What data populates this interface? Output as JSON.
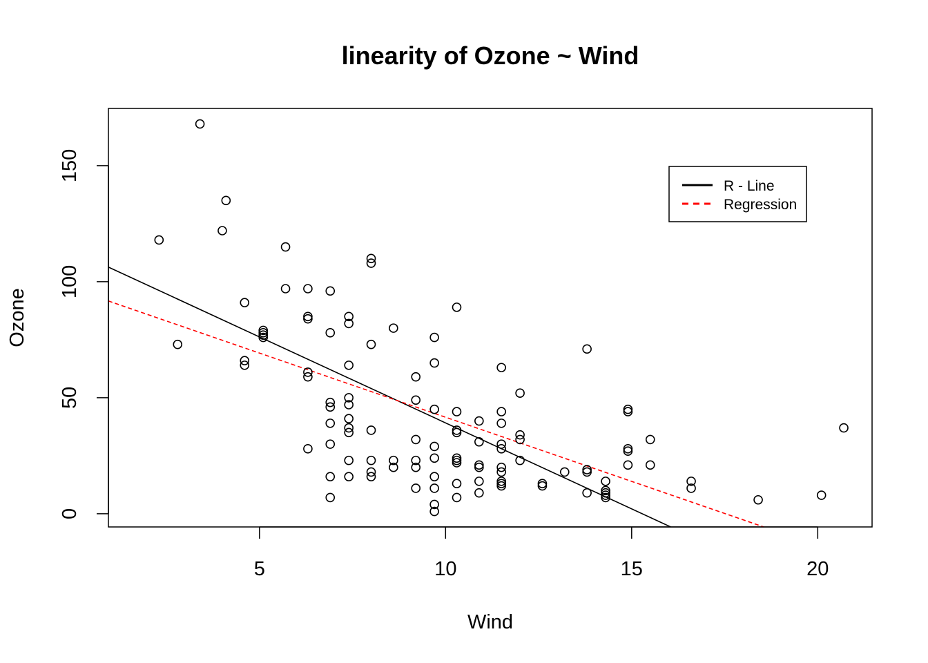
{
  "chart_data": {
    "type": "scatter",
    "title": "linearity of Ozone ~ Wind",
    "xlabel": "Wind",
    "ylabel": "Ozone",
    "xlim": [
      0.94,
      21.46
    ],
    "ylim": [
      -5.68,
      174.68
    ],
    "xticks": [
      5,
      10,
      15,
      20
    ],
    "yticks": [
      0,
      50,
      100,
      150
    ],
    "grid": false,
    "legend_position": "top-right",
    "legend": [
      {
        "label": "R - Line",
        "color": "#000000",
        "style": "solid"
      },
      {
        "label": "Regression",
        "color": "#ff0000",
        "style": "dashed"
      }
    ],
    "lines": [
      {
        "name": "R - Line",
        "color": "#000000",
        "style": "solid",
        "x": [
          0.94,
          16.05
        ],
        "y": [
          106.3,
          -5.68
        ]
      },
      {
        "name": "Regression",
        "color": "#ff0000",
        "style": "dashed",
        "x": [
          0.94,
          18.55
        ],
        "y": [
          91.7,
          -5.68
        ]
      }
    ],
    "points": [
      [
        3.4,
        168
      ],
      [
        2.3,
        118
      ],
      [
        2.8,
        73
      ],
      [
        4.1,
        135
      ],
      [
        4.0,
        122
      ],
      [
        4.6,
        91
      ],
      [
        4.6,
        66
      ],
      [
        4.6,
        64
      ],
      [
        5.1,
        79
      ],
      [
        5.1,
        78
      ],
      [
        5.1,
        77
      ],
      [
        5.1,
        76
      ],
      [
        5.7,
        115
      ],
      [
        5.7,
        97
      ],
      [
        6.3,
        97
      ],
      [
        6.3,
        85
      ],
      [
        6.3,
        84
      ],
      [
        6.3,
        61
      ],
      [
        6.3,
        59
      ],
      [
        6.3,
        28
      ],
      [
        6.9,
        96
      ],
      [
        6.9,
        78
      ],
      [
        6.9,
        48
      ],
      [
        6.9,
        46
      ],
      [
        6.9,
        39
      ],
      [
        6.9,
        30
      ],
      [
        6.9,
        16
      ],
      [
        6.9,
        7
      ],
      [
        7.4,
        85
      ],
      [
        7.4,
        82
      ],
      [
        7.4,
        64
      ],
      [
        7.4,
        50
      ],
      [
        7.4,
        47
      ],
      [
        7.4,
        41
      ],
      [
        7.4,
        37
      ],
      [
        7.4,
        35
      ],
      [
        7.4,
        23
      ],
      [
        7.4,
        16
      ],
      [
        8.0,
        110
      ],
      [
        8.0,
        108
      ],
      [
        8.0,
        73
      ],
      [
        8.0,
        36
      ],
      [
        8.0,
        23
      ],
      [
        8.0,
        18
      ],
      [
        8.0,
        16
      ],
      [
        8.6,
        80
      ],
      [
        8.6,
        23
      ],
      [
        8.6,
        20
      ],
      [
        9.2,
        59
      ],
      [
        9.2,
        49
      ],
      [
        9.2,
        32
      ],
      [
        9.2,
        23
      ],
      [
        9.2,
        20
      ],
      [
        9.2,
        11
      ],
      [
        9.7,
        76
      ],
      [
        9.7,
        65
      ],
      [
        9.7,
        45
      ],
      [
        9.7,
        29
      ],
      [
        9.7,
        24
      ],
      [
        9.7,
        16
      ],
      [
        9.7,
        11
      ],
      [
        9.7,
        4
      ],
      [
        9.7,
        1
      ],
      [
        10.3,
        89
      ],
      [
        10.3,
        44
      ],
      [
        10.3,
        36
      ],
      [
        10.3,
        35
      ],
      [
        10.3,
        24
      ],
      [
        10.3,
        23
      ],
      [
        10.3,
        22
      ],
      [
        10.3,
        13
      ],
      [
        10.3,
        7
      ],
      [
        10.9,
        40
      ],
      [
        10.9,
        31
      ],
      [
        10.9,
        21
      ],
      [
        10.9,
        20
      ],
      [
        10.9,
        14
      ],
      [
        10.9,
        9
      ],
      [
        11.5,
        63
      ],
      [
        11.5,
        44
      ],
      [
        11.5,
        39
      ],
      [
        11.5,
        30
      ],
      [
        11.5,
        28
      ],
      [
        11.5,
        20
      ],
      [
        11.5,
        18
      ],
      [
        11.5,
        14
      ],
      [
        11.5,
        13
      ],
      [
        11.5,
        12
      ],
      [
        12.0,
        52
      ],
      [
        12.0,
        34
      ],
      [
        12.0,
        32
      ],
      [
        12.0,
        23
      ],
      [
        12.6,
        13
      ],
      [
        12.6,
        12
      ],
      [
        13.2,
        18
      ],
      [
        13.8,
        71
      ],
      [
        13.8,
        19
      ],
      [
        13.8,
        18
      ],
      [
        13.8,
        9
      ],
      [
        14.3,
        14
      ],
      [
        14.3,
        10
      ],
      [
        14.3,
        9
      ],
      [
        14.3,
        8
      ],
      [
        14.3,
        7
      ],
      [
        14.9,
        45
      ],
      [
        14.9,
        44
      ],
      [
        14.9,
        28
      ],
      [
        14.9,
        27
      ],
      [
        14.9,
        21
      ],
      [
        15.5,
        32
      ],
      [
        15.5,
        21
      ],
      [
        16.6,
        14
      ],
      [
        16.6,
        11
      ],
      [
        18.4,
        6
      ],
      [
        20.1,
        8
      ],
      [
        20.7,
        37
      ]
    ]
  }
}
